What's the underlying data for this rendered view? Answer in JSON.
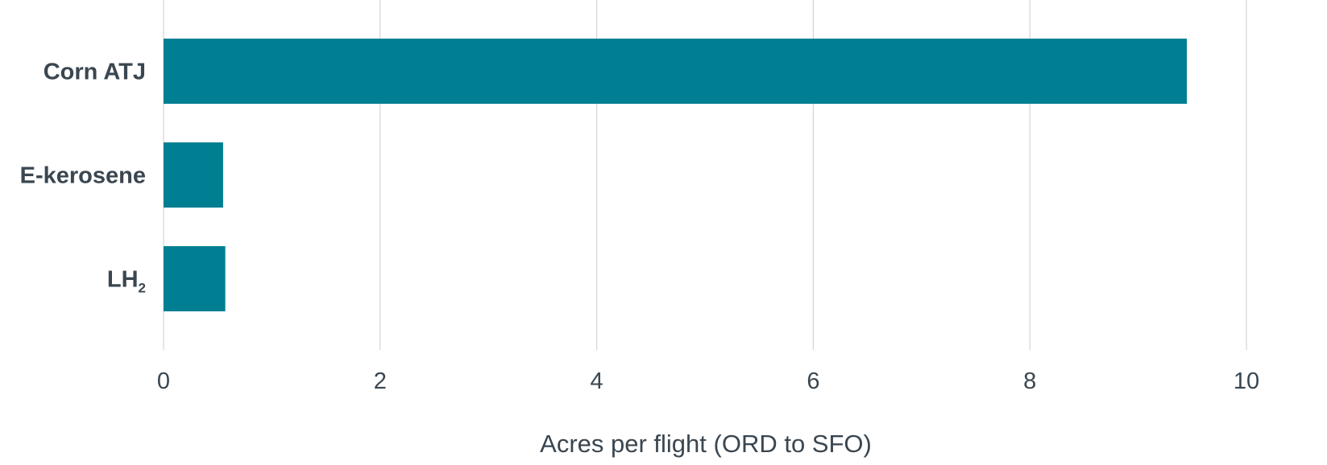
{
  "chart_data": {
    "type": "bar",
    "orientation": "horizontal",
    "categories": [
      {
        "label": "Corn ATJ",
        "subscript": ""
      },
      {
        "label": "E-kerosene",
        "subscript": ""
      },
      {
        "label": "LH",
        "subscript": "2"
      }
    ],
    "values": [
      9.45,
      0.55,
      0.57
    ],
    "bar_color": "#007e92",
    "xlabel": "Acres per flight (ORD to SFO)",
    "ylabel": "",
    "title": "",
    "xlim": [
      0,
      10
    ],
    "xticks": [
      "0",
      "2",
      "4",
      "6",
      "8",
      "10"
    ],
    "grid": true,
    "legend": "none"
  }
}
